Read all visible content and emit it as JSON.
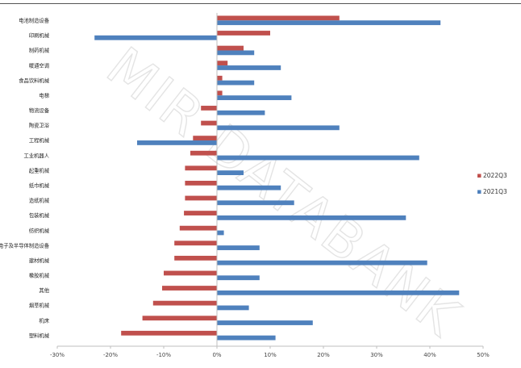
{
  "watermark": "MIR DATABANK",
  "chart_data": {
    "type": "bar",
    "orientation": "horizontal",
    "categories": [
      "电池制造设备",
      "印刷机械",
      "制药机械",
      "暖通空调",
      "食品饮料机械",
      "电梯",
      "物流设备",
      "陶瓷卫浴",
      "工程机械",
      "工业机器人",
      "起重机械",
      "纸巾机械",
      "造纸机械",
      "包装机械",
      "纺织机械",
      "电子及半导体制造设备",
      "建材机械",
      "橡胶机械",
      "其他",
      "烟草机械",
      "机床",
      "塑料机械"
    ],
    "series": [
      {
        "name": "2022Q3",
        "color": "#c0504d",
        "values": [
          23,
          10,
          5,
          2,
          1,
          1,
          -3,
          -3,
          -4.5,
          -5,
          -6,
          -6,
          -6,
          -6.2,
          -7,
          -8,
          -8,
          -10,
          -10.3,
          -12,
          -14,
          -18
        ]
      },
      {
        "name": "2021Q3",
        "color": "#4f81bd",
        "values": [
          42,
          -23,
          7,
          12,
          7,
          14,
          9,
          23,
          -15,
          38,
          5,
          12,
          14.5,
          35.5,
          1.3,
          8,
          39.5,
          8,
          45.5,
          6,
          18,
          11
        ]
      }
    ],
    "xlim": [
      -30,
      50
    ],
    "xticks": [
      "-30%",
      "-20%",
      "-10%",
      "0%",
      "10%",
      "20%",
      "30%",
      "40%",
      "50%"
    ],
    "legend_position": "right",
    "grid": false
  }
}
